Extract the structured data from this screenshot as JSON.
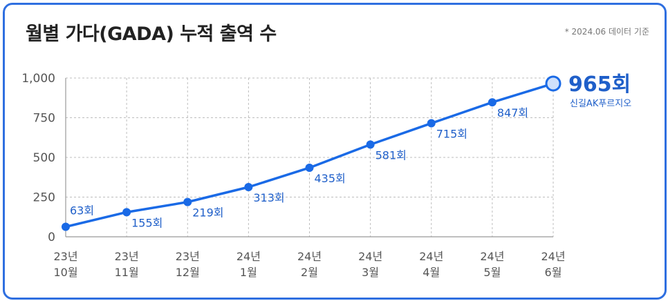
{
  "title": "월별 가다(GADA) 누적 출역 수",
  "note": "* 2024.06 데이터 기준",
  "colors": {
    "accent": "#1a6ae6",
    "label": "#1f5fc9",
    "border": "#2f6fe0"
  },
  "final": {
    "value_label": "965회",
    "sub_label": "신길AK푸르지오"
  },
  "chart_data": {
    "type": "line",
    "title": "월별 가다(GADA) 누적 출역 수",
    "xlabel": "",
    "ylabel": "",
    "categories": [
      [
        "23년",
        "10월"
      ],
      [
        "23년",
        "11월"
      ],
      [
        "23년",
        "12월"
      ],
      [
        "24년",
        "1월"
      ],
      [
        "24년",
        "2월"
      ],
      [
        "24년",
        "3월"
      ],
      [
        "24년",
        "4월"
      ],
      [
        "24년",
        "5월"
      ],
      [
        "24년",
        "6월"
      ]
    ],
    "values": [
      63,
      155,
      219,
      313,
      435,
      581,
      715,
      847,
      965
    ],
    "data_labels": [
      "63회",
      "155회",
      "219회",
      "313회",
      "435회",
      "581회",
      "715회",
      "847회",
      "965회"
    ],
    "label_position": [
      "above",
      "below",
      "below",
      "below",
      "below",
      "below",
      "below",
      "below",
      "right"
    ],
    "ylim": [
      0,
      1000
    ],
    "yticks": [
      0,
      250,
      500,
      750,
      1000
    ],
    "ytick_labels": [
      "0",
      "250",
      "500",
      "750",
      "1,000"
    ],
    "grid": true,
    "legend": "none"
  }
}
